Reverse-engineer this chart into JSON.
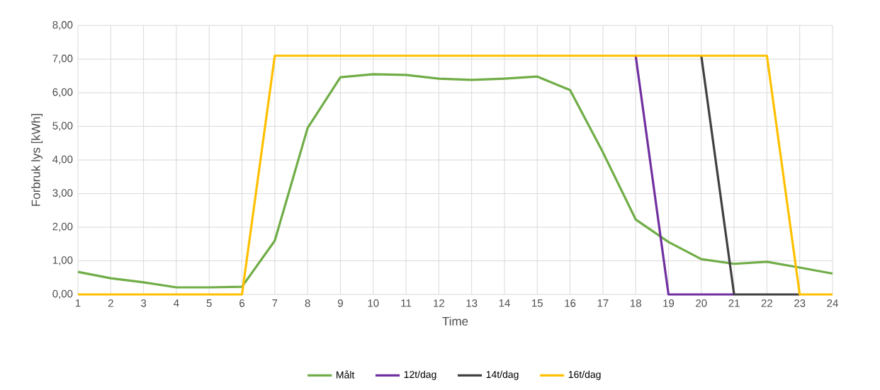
{
  "chart_data": {
    "type": "line",
    "xlabel": "Time",
    "ylabel": "Forbruk lys [kWh]",
    "categories": [
      "1",
      "2",
      "3",
      "4",
      "5",
      "6",
      "7",
      "8",
      "9",
      "10",
      "11",
      "12",
      "13",
      "14",
      "15",
      "16",
      "17",
      "18",
      "19",
      "20",
      "21",
      "22",
      "23",
      "24"
    ],
    "series": [
      {
        "name": "Målt",
        "color": "#70ad47",
        "values": [
          0.67,
          0.48,
          0.36,
          0.21,
          0.21,
          0.23,
          1.6,
          4.95,
          6.46,
          6.55,
          6.53,
          6.42,
          6.38,
          6.42,
          6.48,
          6.08,
          4.23,
          2.23,
          1.56,
          1.05,
          0.91,
          0.97,
          0.8,
          0.62
        ]
      },
      {
        "name": "12t/dag",
        "color": "#7030a0",
        "values": [
          null,
          null,
          null,
          null,
          null,
          null,
          null,
          null,
          null,
          null,
          null,
          null,
          null,
          null,
          null,
          null,
          null,
          7.1,
          0,
          0,
          0,
          null,
          null,
          null
        ]
      },
      {
        "name": "14t/dag",
        "color": "#404040",
        "values": [
          null,
          null,
          null,
          null,
          null,
          null,
          null,
          null,
          null,
          null,
          null,
          null,
          null,
          null,
          null,
          null,
          null,
          null,
          null,
          7.1,
          0,
          0,
          0,
          null
        ]
      },
      {
        "name": "16t/dag",
        "color": "#ffc000",
        "values": [
          0,
          0,
          0,
          0,
          0,
          0,
          7.1,
          7.1,
          7.1,
          7.1,
          7.1,
          7.1,
          7.1,
          7.1,
          7.1,
          7.1,
          7.1,
          7.1,
          7.1,
          7.1,
          7.1,
          7.1,
          0,
          0
        ]
      }
    ],
    "ylim": [
      0,
      8
    ],
    "yticks": [
      {
        "value": 0,
        "label": "0,00"
      },
      {
        "value": 1,
        "label": "1,00"
      },
      {
        "value": 2,
        "label": "2,00"
      },
      {
        "value": 3,
        "label": "3,00"
      },
      {
        "value": 4,
        "label": "4,00"
      },
      {
        "value": 5,
        "label": "5,00"
      },
      {
        "value": 6,
        "label": "6,00"
      },
      {
        "value": 7,
        "label": "7,00"
      },
      {
        "value": 8,
        "label": "8,00"
      }
    ],
    "grid": true,
    "legend": "bottom",
    "marker": "none",
    "line_style": "solid"
  }
}
